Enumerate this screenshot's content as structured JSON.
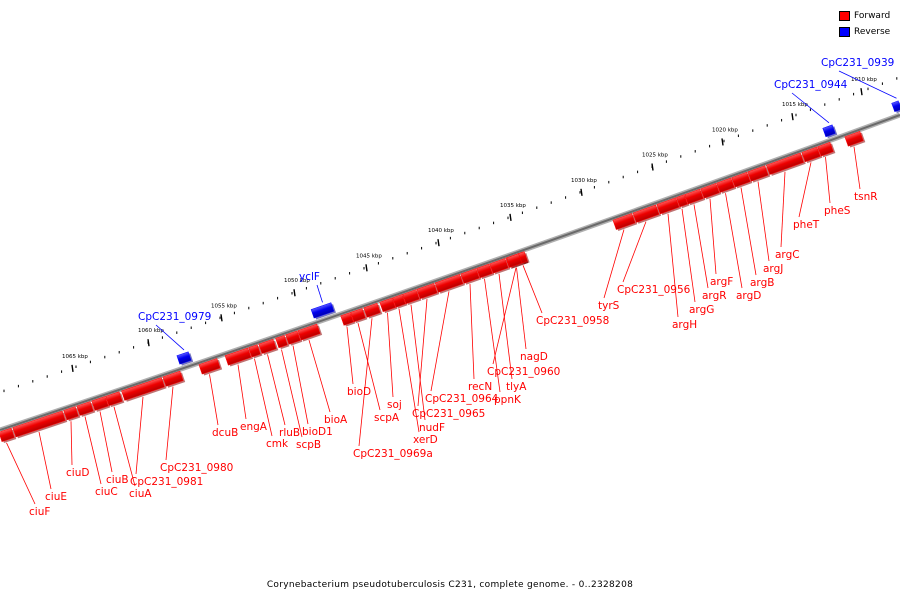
{
  "legend": {
    "forward_label": "Forward",
    "reverse_label": "Reverse",
    "forward_color": "#ff0000",
    "reverse_color": "#0000ff"
  },
  "caption": "Corynebacterium pseudotuberculosis C231, complete genome. - 0..2328208",
  "ticks": [
    "1065 kbp",
    "1060 kbp",
    "1055 kbp",
    "1050 kbp",
    "1045 kbp",
    "1040 kbp",
    "1035 kbp",
    "1030 kbp",
    "1025 kbp",
    "1020 kbp",
    "1015 kbp",
    "1010 kbp"
  ],
  "genes": [
    {
      "name": "ciuF",
      "strand": "forward"
    },
    {
      "name": "ciuE",
      "strand": "forward"
    },
    {
      "name": "ciuD",
      "strand": "forward"
    },
    {
      "name": "ciuC",
      "strand": "forward"
    },
    {
      "name": "ciuB",
      "strand": "forward"
    },
    {
      "name": "ciuA",
      "strand": "forward"
    },
    {
      "name": "CpC231_0981",
      "strand": "forward"
    },
    {
      "name": "CpC231_0980",
      "strand": "forward"
    },
    {
      "name": "CpC231_0979",
      "strand": "reverse"
    },
    {
      "name": "dcuB",
      "strand": "forward"
    },
    {
      "name": "engA",
      "strand": "forward"
    },
    {
      "name": "cmk",
      "strand": "forward"
    },
    {
      "name": "rluB",
      "strand": "forward"
    },
    {
      "name": "scpB",
      "strand": "forward"
    },
    {
      "name": "bioD1",
      "strand": "forward"
    },
    {
      "name": "bioA",
      "strand": "forward"
    },
    {
      "name": "yclF",
      "strand": "reverse"
    },
    {
      "name": "bioD",
      "strand": "forward"
    },
    {
      "name": "scpA",
      "strand": "forward"
    },
    {
      "name": "CpC231_0969a",
      "strand": "forward"
    },
    {
      "name": "soj",
      "strand": "forward"
    },
    {
      "name": "xerD",
      "strand": "forward"
    },
    {
      "name": "nudF",
      "strand": "forward"
    },
    {
      "name": "CpC231_0965",
      "strand": "forward"
    },
    {
      "name": "CpC231_0964",
      "strand": "forward"
    },
    {
      "name": "recN",
      "strand": "forward"
    },
    {
      "name": "ppnK",
      "strand": "forward"
    },
    {
      "name": "tlyA",
      "strand": "forward"
    },
    {
      "name": "CpC231_0960",
      "strand": "forward"
    },
    {
      "name": "nagD",
      "strand": "forward"
    },
    {
      "name": "CpC231_0958",
      "strand": "forward"
    },
    {
      "name": "tyrS",
      "strand": "forward"
    },
    {
      "name": "CpC231_0956",
      "strand": "forward"
    },
    {
      "name": "argH",
      "strand": "forward"
    },
    {
      "name": "argG",
      "strand": "forward"
    },
    {
      "name": "argR",
      "strand": "forward"
    },
    {
      "name": "argF",
      "strand": "forward"
    },
    {
      "name": "argD",
      "strand": "forward"
    },
    {
      "name": "argB",
      "strand": "forward"
    },
    {
      "name": "argJ",
      "strand": "forward"
    },
    {
      "name": "argC",
      "strand": "forward"
    },
    {
      "name": "pheT",
      "strand": "forward"
    },
    {
      "name": "pheS",
      "strand": "forward"
    },
    {
      "name": "tsnR",
      "strand": "forward"
    },
    {
      "name": "CpC231_0944",
      "strand": "reverse"
    },
    {
      "name": "CpC231_0939",
      "strand": "reverse"
    }
  ]
}
